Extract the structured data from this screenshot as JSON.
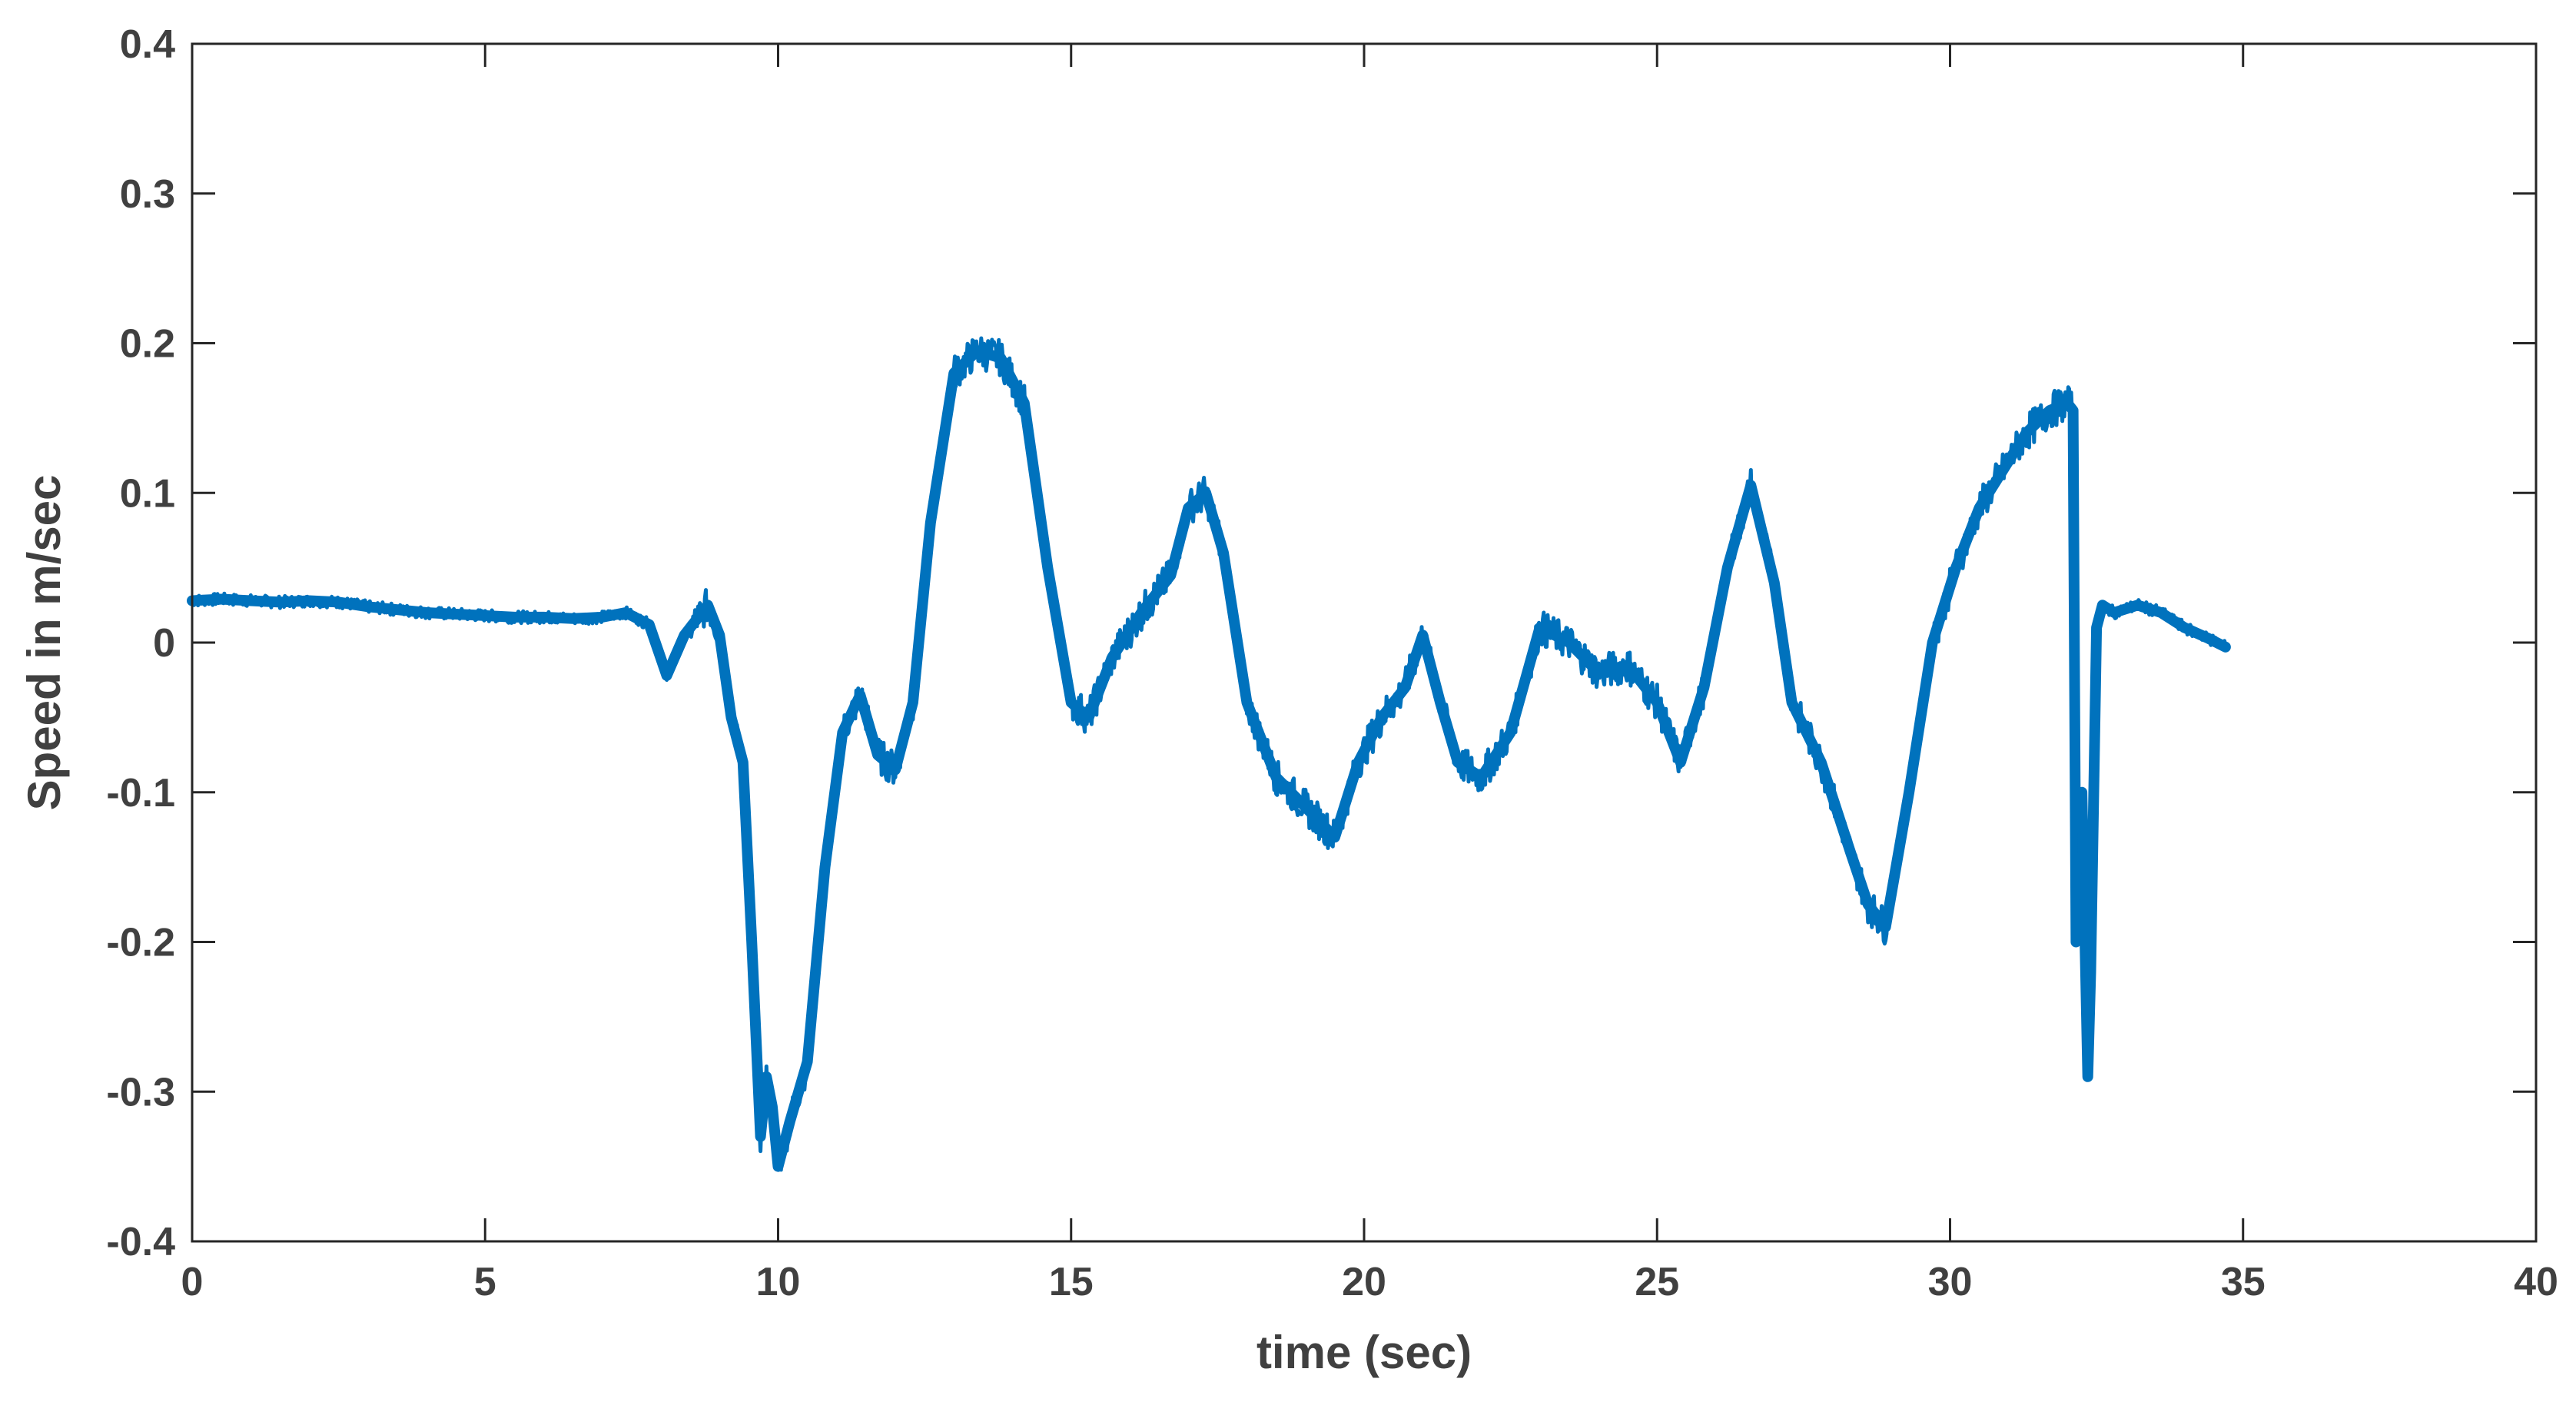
{
  "chart_data": {
    "type": "line",
    "xlabel": "time (sec)",
    "ylabel": "Speed in m/sec",
    "xlim": [
      0,
      40
    ],
    "ylim": [
      -0.4,
      0.4
    ],
    "x_ticks": [
      0,
      5,
      10,
      15,
      20,
      25,
      30,
      35,
      40
    ],
    "y_ticks": [
      -0.4,
      -0.3,
      -0.2,
      -0.1,
      0,
      0.1,
      0.2,
      0.3,
      0.4
    ],
    "x_tick_labels": [
      "0",
      "5",
      "10",
      "15",
      "20",
      "25",
      "30",
      "35",
      "40"
    ],
    "y_tick_labels": [
      "-0.4",
      "-0.3",
      "-0.2",
      "-0.1",
      "0",
      "0.1",
      "0.2",
      "0.3",
      "0.4"
    ],
    "grid": false,
    "legend": "none",
    "series": [
      {
        "color": "#0072BD",
        "x": [
          0,
          0.5,
          1,
          1.5,
          2,
          2.5,
          3,
          3.5,
          4,
          4.5,
          5,
          5.5,
          6,
          6.5,
          7,
          7.4,
          7.8,
          8.1,
          8.4,
          8.8,
          9.0,
          9.2,
          9.4,
          9.55,
          9.7,
          9.8,
          9.9,
          10.0,
          10.2,
          10.5,
          10.8,
          11.1,
          11.4,
          11.7,
          12.0,
          12.3,
          12.6,
          13.0,
          13.4,
          13.8,
          14.2,
          14.6,
          15.0,
          15.3,
          15.7,
          16.2,
          16.7,
          17.0,
          17.3,
          17.6,
          18.0,
          18.5,
          19.0,
          19.5,
          19.9,
          20.3,
          20.7,
          21.0,
          21.3,
          21.6,
          22.0,
          22.5,
          23.0,
          23.5,
          24.0,
          24.5,
          25.0,
          25.4,
          25.8,
          26.2,
          26.6,
          27.0,
          27.3,
          27.8,
          28.3,
          28.6,
          28.9,
          29.3,
          29.7,
          30.1,
          30.5,
          30.9,
          31.3,
          31.7,
          32.0,
          32.1,
          32.15,
          32.25,
          32.35,
          32.4,
          32.5,
          32.6,
          32.8,
          33.2,
          33.6,
          34.0,
          34.4,
          34.7
        ],
        "y": [
          0.028,
          0.029,
          0.028,
          0.027,
          0.028,
          0.027,
          0.024,
          0.022,
          0.02,
          0.019,
          0.018,
          0.017,
          0.017,
          0.016,
          0.017,
          0.02,
          0.012,
          -0.022,
          0.005,
          0.025,
          0.005,
          -0.05,
          -0.08,
          -0.2,
          -0.33,
          -0.29,
          -0.31,
          -0.35,
          -0.32,
          -0.28,
          -0.15,
          -0.06,
          -0.035,
          -0.075,
          -0.085,
          -0.04,
          0.08,
          0.18,
          0.195,
          0.19,
          0.16,
          0.05,
          -0.04,
          -0.05,
          -0.01,
          0.02,
          0.045,
          0.09,
          0.1,
          0.06,
          -0.04,
          -0.09,
          -0.11,
          -0.13,
          -0.08,
          -0.05,
          -0.03,
          0.005,
          -0.04,
          -0.08,
          -0.09,
          -0.06,
          0.01,
          0.0,
          -0.02,
          -0.015,
          -0.04,
          -0.08,
          -0.03,
          0.05,
          0.105,
          0.04,
          -0.04,
          -0.08,
          -0.14,
          -0.175,
          -0.19,
          -0.1,
          0.0,
          0.05,
          0.09,
          0.115,
          0.14,
          0.155,
          0.16,
          0.155,
          -0.2,
          -0.1,
          -0.29,
          -0.22,
          0.01,
          0.025,
          0.02,
          0.025,
          0.02,
          0.01,
          0.003,
          -0.003
        ]
      }
    ]
  }
}
